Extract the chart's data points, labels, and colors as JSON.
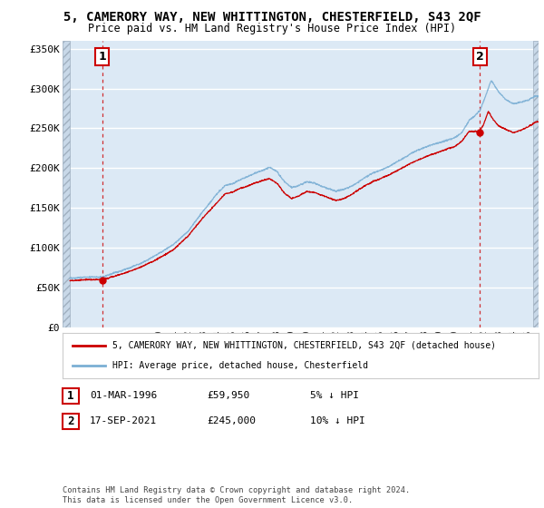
{
  "title": "5, CAMERORY WAY, NEW WHITTINGTON, CHESTERFIELD, S43 2QF",
  "subtitle": "Price paid vs. HM Land Registry's House Price Index (HPI)",
  "legend_line1": "5, CAMERORY WAY, NEW WHITTINGTON, CHESTERFIELD, S43 2QF (detached house)",
  "legend_line2": "HPI: Average price, detached house, Chesterfield",
  "annotation1_date": "01-MAR-1996",
  "annotation1_price": "£59,950",
  "annotation1_hpi": "5% ↓ HPI",
  "annotation2_date": "17-SEP-2021",
  "annotation2_price": "£245,000",
  "annotation2_hpi": "10% ↓ HPI",
  "footnote": "Contains HM Land Registry data © Crown copyright and database right 2024.\nThis data is licensed under the Open Government Licence v3.0.",
  "ylim": [
    0,
    360000
  ],
  "yticks": [
    0,
    50000,
    100000,
    150000,
    200000,
    250000,
    300000,
    350000
  ],
  "ytick_labels": [
    "£0",
    "£50K",
    "£100K",
    "£150K",
    "£200K",
    "£250K",
    "£300K",
    "£350K"
  ],
  "hpi_color": "#7bafd4",
  "price_color": "#cc0000",
  "background_color": "#ffffff",
  "plot_bg_color": "#dce9f5",
  "grid_color": "#ffffff",
  "sale1_x": 1996.17,
  "sale1_y": 59950,
  "sale2_x": 2021.72,
  "sale2_y": 245000,
  "xmin": 1994.0,
  "xmax": 2025.5
}
